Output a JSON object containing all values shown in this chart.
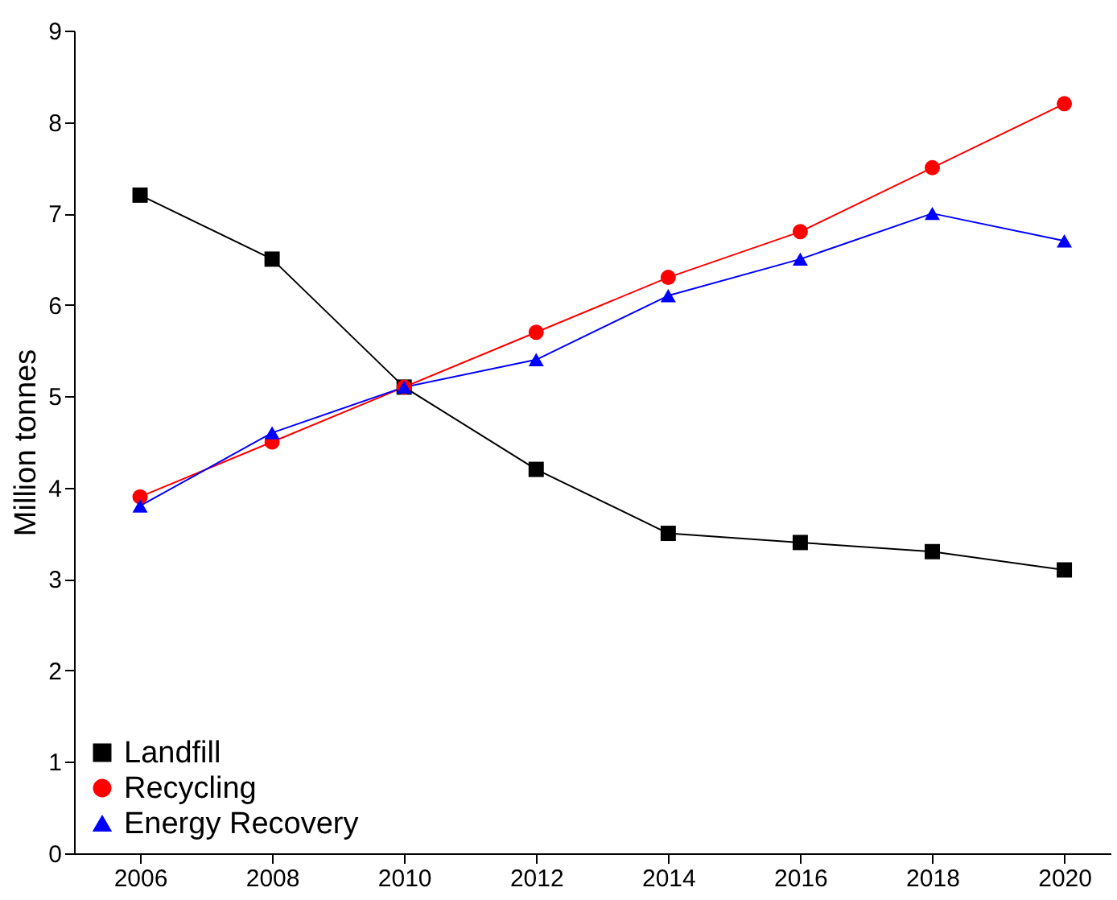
{
  "chart_data": {
    "type": "line",
    "ylabel": "Million tonnes",
    "x": [
      2006,
      2008,
      2010,
      2012,
      2014,
      2016,
      2018,
      2020
    ],
    "xlim": [
      2005,
      2020.7
    ],
    "xticks": [
      2006,
      2008,
      2010,
      2012,
      2014,
      2016,
      2018,
      2020
    ],
    "ylim": [
      0,
      9
    ],
    "yticks": [
      0,
      1,
      2,
      3,
      4,
      5,
      6,
      7,
      8,
      9
    ],
    "grid": false,
    "legend": "bottom left",
    "line_style": "solid",
    "series": [
      {
        "name": "Landfill",
        "color": "#000000",
        "marker": "square",
        "values": [
          7.2,
          6.5,
          5.1,
          4.2,
          3.5,
          3.4,
          3.3,
          3.1
        ]
      },
      {
        "name": "Recycling",
        "color": "#ff0000",
        "marker": "circle",
        "values": [
          3.9,
          4.5,
          5.1,
          5.7,
          6.3,
          6.8,
          7.5,
          8.2
        ]
      },
      {
        "name": "Energy Recovery",
        "color": "#0000ff",
        "marker": "triangle",
        "values": [
          3.8,
          4.6,
          5.1,
          5.4,
          6.1,
          6.5,
          7.0,
          6.7
        ]
      }
    ]
  }
}
